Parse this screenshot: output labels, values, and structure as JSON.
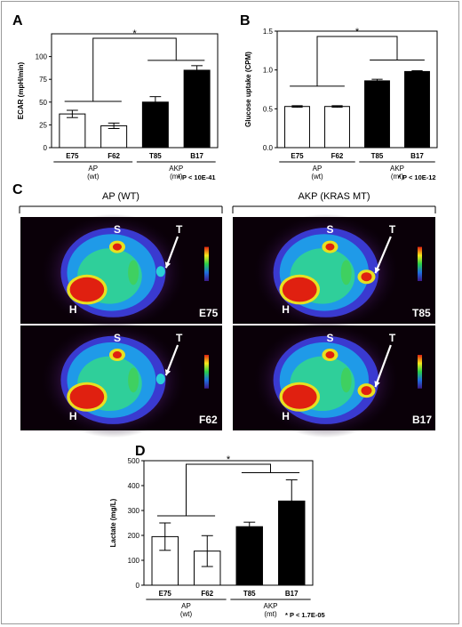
{
  "panels": {
    "A": {
      "letter": "A",
      "chart_data": {
        "type": "bar",
        "categories": [
          "E75",
          "F62",
          "T85",
          "B17"
        ],
        "values": [
          37,
          24,
          50,
          85
        ],
        "errors": [
          4,
          3,
          6,
          5
        ],
        "fills": [
          "#ffffff",
          "#ffffff",
          "#000000",
          "#000000"
        ],
        "ylabel": "ECAR (mpH/min)",
        "ylim": [
          0,
          125
        ],
        "yticks": [
          0,
          25,
          50,
          75,
          100
        ],
        "groups": [
          {
            "label": "AP",
            "sub": "(wt)"
          },
          {
            "label": "AKP",
            "sub": "(mt)"
          }
        ],
        "star": "*",
        "pvalue": "* P < 10E-41"
      }
    },
    "B": {
      "letter": "B",
      "chart_data": {
        "type": "bar",
        "categories": [
          "E75",
          "F62",
          "T85",
          "B17"
        ],
        "values": [
          0.53,
          0.53,
          0.86,
          0.98
        ],
        "errors": [
          0.01,
          0.01,
          0.02,
          0.01
        ],
        "fills": [
          "#ffffff",
          "#ffffff",
          "#000000",
          "#000000"
        ],
        "ylabel": "Glucose uptake (CPM)",
        "ylim": [
          0,
          1.5
        ],
        "yticks": [
          0.0,
          0.5,
          1.0,
          1.5
        ],
        "groups": [
          {
            "label": "AP",
            "sub": "(wt)"
          },
          {
            "label": "AKP",
            "sub": "(mt)"
          }
        ],
        "star": "*",
        "pvalue": "* P < 10E-12"
      }
    },
    "C": {
      "letter": "C",
      "left_title": "AP (WT)",
      "right_title": "AKP (KRAS MT)",
      "images": [
        {
          "id": "E75",
          "S": "S",
          "H": "H",
          "T": "T"
        },
        {
          "id": "T85",
          "S": "S",
          "H": "H",
          "T": "T"
        },
        {
          "id": "F62",
          "S": "S",
          "H": "H",
          "T": "T"
        },
        {
          "id": "B17",
          "S": "S",
          "H": "H",
          "T": "T"
        }
      ]
    },
    "D": {
      "letter": "D",
      "chart_data": {
        "type": "bar",
        "categories": [
          "E75",
          "F62",
          "T85",
          "B17"
        ],
        "values": [
          195,
          137,
          235,
          338
        ],
        "errors": [
          55,
          62,
          18,
          85
        ],
        "fills": [
          "#ffffff",
          "#ffffff",
          "#000000",
          "#000000"
        ],
        "ylabel": "Lactate (mg/L)",
        "ylim": [
          0,
          500
        ],
        "yticks": [
          0,
          100,
          200,
          300,
          400,
          500
        ],
        "groups": [
          {
            "label": "AP",
            "sub": "(wt)"
          },
          {
            "label": "AKP",
            "sub": "(mt)"
          }
        ],
        "star": "*",
        "pvalue": "* P < 1.7E-05"
      }
    }
  }
}
